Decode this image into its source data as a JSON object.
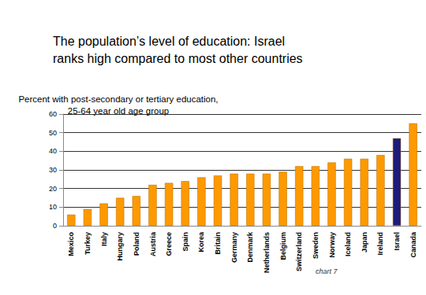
{
  "chart_data": {
    "type": "bar",
    "title": "The population’s level of education: Israel\nranks high compared to most other countries",
    "subtitle": "Percent with post-secondary or tertiary education,\n25-64 year old age group",
    "annotation": "chart 7",
    "categories": [
      "Mexico",
      "Turkey",
      "Italy",
      "Hungary",
      "Poland",
      "Austria",
      "Greece",
      "Spain",
      "Korea",
      "Britain",
      "Germany",
      "Denmark",
      "Netherlands",
      "Belgium",
      "Switzerland",
      "Sweden",
      "Norway",
      "Iceland",
      "Japan",
      "Ireland",
      "Israel",
      "Canada"
    ],
    "values": [
      6,
      9,
      12,
      15,
      16,
      22,
      23,
      24,
      26,
      27,
      28,
      28,
      28,
      29,
      32,
      32,
      34,
      36,
      36,
      38,
      47,
      55
    ],
    "colors": [
      "#ff9900",
      "#ff9900",
      "#ff9900",
      "#ff9900",
      "#ff9900",
      "#ff9900",
      "#ff9900",
      "#ff9900",
      "#ff9900",
      "#ff9900",
      "#ff9900",
      "#ff9900",
      "#ff9900",
      "#ff9900",
      "#ff9900",
      "#ff9900",
      "#ff9900",
      "#ff9900",
      "#ff9900",
      "#ff9900",
      "#1c1c7a",
      "#ff9900"
    ],
    "ylim": [
      0,
      60
    ],
    "yticks": [
      0,
      10,
      20,
      30,
      40,
      50,
      60
    ],
    "grid": true
  }
}
